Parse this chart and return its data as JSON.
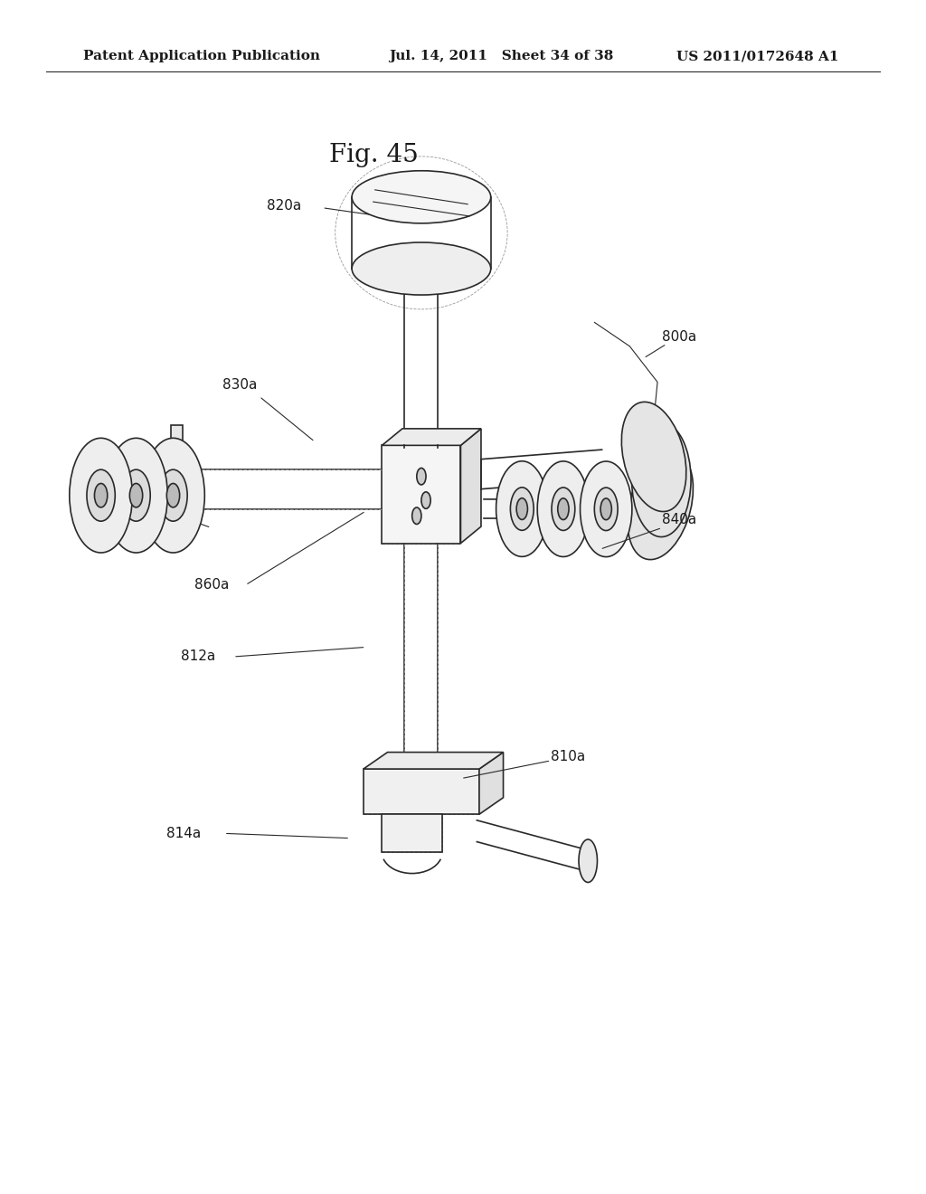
{
  "bg_color": "#ffffff",
  "header_left": "Patent Application Publication",
  "header_mid": "Jul. 14, 2011   Sheet 34 of 38",
  "header_right": "US 2011/0172648 A1",
  "fig_label": "Fig. 45",
  "line_color": "#2a2a2a",
  "header_fontsize": 11,
  "fig_label_fontsize": 20,
  "label_fontsize": 11
}
